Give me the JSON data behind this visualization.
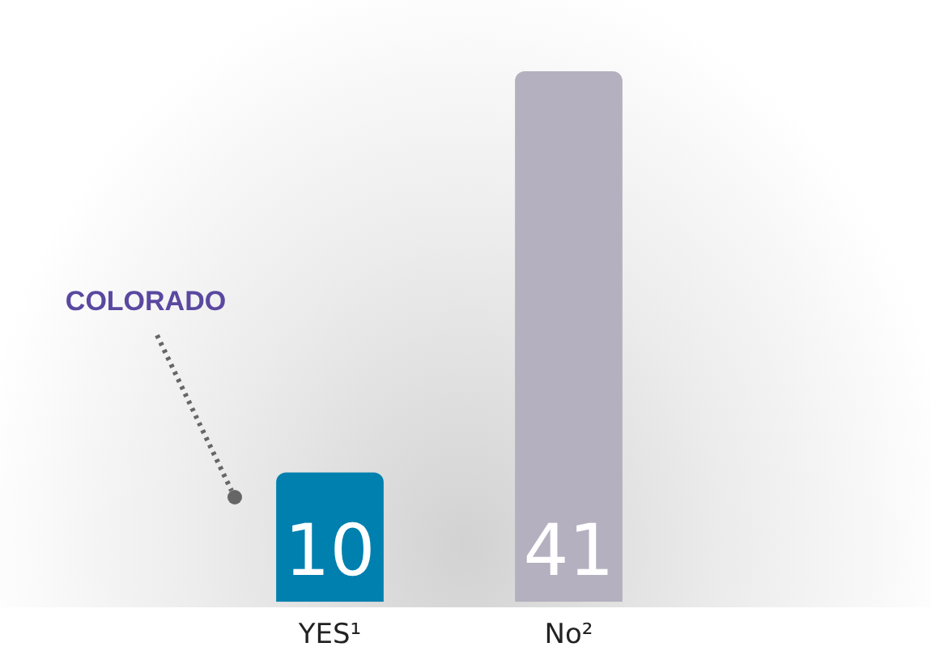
{
  "chart_data": {
    "type": "bar",
    "categories": [
      "YES¹",
      "No²"
    ],
    "values": [
      10,
      41
    ],
    "colors": [
      "#0080ae",
      "#b5b0bf"
    ],
    "data_labels": true,
    "annotations": [
      "COLORADO"
    ],
    "grid": false,
    "legend": false
  }
}
